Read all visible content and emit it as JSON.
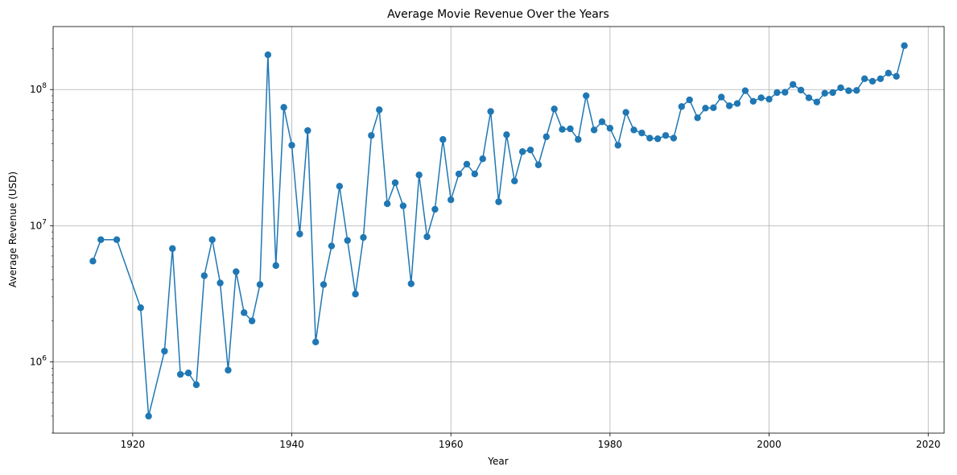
{
  "chart_data": {
    "type": "line",
    "title": "Average Movie Revenue Over the Years",
    "xlabel": "Year",
    "ylabel": "Average Revenue (USD)",
    "yscale": "log",
    "grid": true,
    "xlim": [
      1910,
      2022
    ],
    "ylim": [
      300000,
      290000000
    ],
    "x_ticks": [
      {
        "value": 1920,
        "label": "1920"
      },
      {
        "value": 1940,
        "label": "1940"
      },
      {
        "value": 1960,
        "label": "1960"
      },
      {
        "value": 1980,
        "label": "1980"
      },
      {
        "value": 2000,
        "label": "2000"
      },
      {
        "value": 2020,
        "label": "2020"
      }
    ],
    "y_ticks": [
      {
        "value": 1000000,
        "base": "10",
        "exp": "6"
      },
      {
        "value": 10000000,
        "base": "10",
        "exp": "7"
      },
      {
        "value": 100000000,
        "base": "10",
        "exp": "8"
      }
    ],
    "colors": {
      "series": "#1f77b4",
      "grid": "#b0b0b0"
    },
    "series": [
      {
        "marker": "circle",
        "x": [
          1915,
          1916,
          1918,
          1921,
          1922,
          1924,
          1925,
          1926,
          1927,
          1928,
          1929,
          1930,
          1931,
          1932,
          1933,
          1934,
          1935,
          1936,
          1937,
          1938,
          1939,
          1940,
          1941,
          1942,
          1943,
          1944,
          1945,
          1946,
          1947,
          1948,
          1949,
          1950,
          1951,
          1952,
          1953,
          1954,
          1955,
          1956,
          1957,
          1958,
          1959,
          1960,
          1961,
          1962,
          1963,
          1964,
          1965,
          1966,
          1967,
          1968,
          1969,
          1970,
          1971,
          1972,
          1973,
          1974,
          1975,
          1976,
          1977,
          1978,
          1979,
          1980,
          1981,
          1982,
          1983,
          1984,
          1985,
          1986,
          1987,
          1988,
          1989,
          1990,
          1991,
          1992,
          1993,
          1994,
          1995,
          1996,
          1997,
          1998,
          1999,
          2000,
          2001,
          2002,
          2003,
          2004,
          2005,
          2006,
          2007,
          2008,
          2009,
          2010,
          2011,
          2012,
          2013,
          2014,
          2015,
          2016,
          2017
        ],
        "y": [
          5500000,
          7900000,
          7900000,
          2500000,
          400000,
          1200000,
          6800000,
          810000,
          830000,
          680000,
          4300000,
          7900000,
          3800000,
          870000,
          4600000,
          2300000,
          2000000,
          3700000,
          180000000,
          5100000,
          74000000,
          39000000,
          8700000,
          50000000,
          1400000,
          3700000,
          7100000,
          19500000,
          7800000,
          3150000,
          8200000,
          46000000,
          71000000,
          14500000,
          20700000,
          14000000,
          3750000,
          23600000,
          8300000,
          13200000,
          43000000,
          15500000,
          24000000,
          28300000,
          24000000,
          31000000,
          69000000,
          15000000,
          46600000,
          21300000,
          35000000,
          36000000,
          28000000,
          45000000,
          72000000,
          51000000,
          51500000,
          43000000,
          90000000,
          50500000,
          58000000,
          52000000,
          39000000,
          68000000,
          50500000,
          48000000,
          44000000,
          43500000,
          46000000,
          44000000,
          75000000,
          84000000,
          62000000,
          73000000,
          73500000,
          88000000,
          76000000,
          79000000,
          98000000,
          82000000,
          87000000,
          85000000,
          95000000,
          95500000,
          109000000,
          99000000,
          87000000,
          81000000,
          94000000,
          95000000,
          103000000,
          98000000,
          98500000,
          120000000,
          115000000,
          120000000,
          132000000,
          125000000,
          210000000
        ]
      }
    ]
  }
}
